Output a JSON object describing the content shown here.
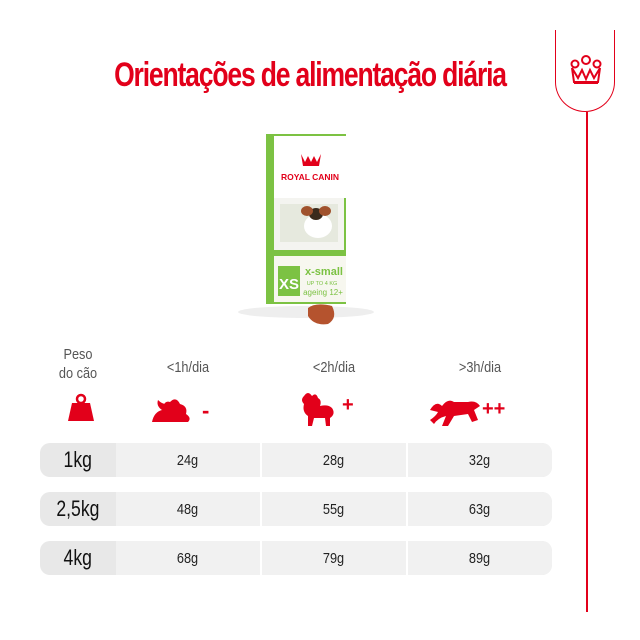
{
  "title": "Orientações de alimentação diária",
  "product": {
    "brand": "ROYAL CANIN",
    "size_badge": "XS",
    "name": "x-small",
    "weight_note": "UP TO 4 KG",
    "variant": "ageing 12+"
  },
  "table": {
    "weight_header": [
      "Peso",
      "do cão"
    ],
    "activity_headers": [
      "<1h/dia",
      "<2h/dia",
      ">3h/dia"
    ],
    "activity_icons": [
      "resting-dog-icon",
      "walking-dog-icon",
      "running-dog-icon"
    ],
    "activity_symbols": [
      "-",
      "+",
      "++"
    ],
    "rows": [
      {
        "weight": "1kg",
        "values": [
          "24g",
          "28g",
          "32g"
        ]
      },
      {
        "weight": "2,5kg",
        "values": [
          "48g",
          "55g",
          "63g"
        ]
      },
      {
        "weight": "4kg",
        "values": [
          "68g",
          "79g",
          "89g"
        ]
      }
    ]
  },
  "colors": {
    "accent": "#e2001a",
    "bag_green": "#7cc243",
    "row_bg": "#e8e8e8"
  }
}
